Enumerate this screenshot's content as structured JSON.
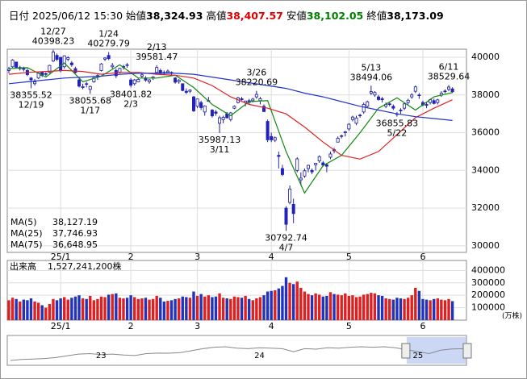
{
  "header": {
    "date_label": "日付",
    "datetime": "2025/06/12 15:30",
    "items": [
      {
        "label": "始値",
        "value": "38,324.93",
        "color": "#000000"
      },
      {
        "label": "高値",
        "value": "38,407.57",
        "color": "#e00000"
      },
      {
        "label": "安値",
        "value": "38,102.05",
        "color": "#008000"
      },
      {
        "label": "終値",
        "value": "38,173.09",
        "color": "#000000"
      }
    ]
  },
  "chart_data": {
    "type": "candlestick",
    "up_color": "#1a1aa0",
    "down_color": "#2222bb",
    "up_fill": "#ffffff",
    "ylim": [
      29650,
      40430
    ],
    "yticks": [
      30000,
      32000,
      34000,
      36000,
      38000,
      40000
    ],
    "grid": true,
    "xlabels": [
      {
        "index": 14,
        "label": "25/1"
      },
      {
        "index": 33,
        "label": "2"
      },
      {
        "index": 51,
        "label": "3"
      },
      {
        "index": 71,
        "label": "4"
      },
      {
        "index": 92,
        "label": "5"
      },
      {
        "index": 112,
        "label": "6"
      }
    ],
    "candles": [
      [
        39300,
        39500,
        39150,
        39370
      ],
      [
        39500,
        39900,
        39450,
        39850
      ],
      [
        39750,
        39750,
        39400,
        39470
      ],
      [
        39400,
        39550,
        39300,
        39460
      ],
      [
        39450,
        39500,
        39250,
        39360
      ],
      [
        39300,
        39400,
        39000,
        39080
      ],
      [
        38900,
        38950,
        38355.52,
        38810
      ],
      [
        38600,
        38850,
        38500,
        38700
      ],
      [
        38900,
        39200,
        38850,
        39160
      ],
      [
        39200,
        39250,
        38950,
        39040
      ],
      [
        39100,
        39200,
        39000,
        39130
      ],
      [
        39200,
        39600,
        39150,
        39570
      ],
      [
        39800,
        40398.23,
        39750,
        40280
      ],
      [
        40100,
        40200,
        39800,
        39890
      ],
      [
        40000,
        40000,
        39200,
        39310
      ],
      [
        39500,
        40100,
        39400,
        40080
      ],
      [
        39900,
        40050,
        39800,
        39980
      ],
      [
        39700,
        39800,
        39500,
        39600
      ],
      [
        39400,
        39500,
        39150,
        39190
      ],
      [
        38800,
        38950,
        38400,
        38470
      ],
      [
        38400,
        38600,
        38300,
        38440
      ],
      [
        38600,
        38700,
        38400,
        38570
      ],
      [
        38300,
        38500,
        38055.68,
        38450
      ],
      [
        38700,
        38950,
        38650,
        38900
      ],
      [
        39000,
        39100,
        38800,
        39030
      ],
      [
        39300,
        39700,
        39250,
        39650
      ],
      [
        39900,
        40000,
        39800,
        39960
      ],
      [
        40100,
        40279.79,
        39850,
        39930
      ],
      [
        39500,
        39700,
        39400,
        39570
      ],
      [
        39300,
        39400,
        38900,
        39020
      ],
      [
        39200,
        39450,
        39150,
        39410
      ],
      [
        39500,
        39600,
        39350,
        39510
      ],
      [
        39600,
        39700,
        39450,
        39570
      ],
      [
        38800,
        38900,
        38401.82,
        38520
      ],
      [
        38600,
        38850,
        38500,
        38800
      ],
      [
        38700,
        38900,
        38700,
        38830
      ],
      [
        39000,
        39200,
        38900,
        39070
      ],
      [
        38900,
        39000,
        38700,
        38790
      ],
      [
        38700,
        38850,
        38600,
        38800
      ],
      [
        38900,
        39000,
        38800,
        38960
      ],
      [
        39200,
        39581.47,
        39150,
        39460
      ],
      [
        39300,
        39400,
        39100,
        39150
      ],
      [
        39200,
        39300,
        39100,
        39170
      ],
      [
        39200,
        39350,
        39150,
        39270
      ],
      [
        39200,
        39250,
        39000,
        39160
      ],
      [
        38900,
        38950,
        38600,
        38680
      ],
      [
        38700,
        38850,
        38600,
        38780
      ],
      [
        38600,
        38600,
        38200,
        38240
      ],
      [
        38200,
        38350,
        38050,
        38140
      ],
      [
        38200,
        38300,
        38100,
        38260
      ],
      [
        37900,
        37950,
        37100,
        37160
      ],
      [
        37400,
        37800,
        37300,
        37790
      ],
      [
        37600,
        37700,
        37200,
        37330
      ],
      [
        37100,
        37450,
        36900,
        37420
      ],
      [
        37700,
        37900,
        37650,
        37700
      ],
      [
        37200,
        37250,
        36800,
        36890
      ],
      [
        37100,
        37200,
        36900,
        37030
      ],
      [
        36500,
        36900,
        35987.13,
        36790
      ],
      [
        36700,
        36900,
        36500,
        36820
      ],
      [
        37000,
        37100,
        36750,
        36790
      ],
      [
        36700,
        37100,
        36600,
        37050
      ],
      [
        37300,
        37450,
        37250,
        37400
      ],
      [
        37600,
        37900,
        37550,
        37850
      ],
      [
        37800,
        37900,
        37700,
        37750
      ],
      [
        37600,
        37700,
        37400,
        37680
      ],
      [
        37700,
        37800,
        37500,
        37610
      ],
      [
        37700,
        37850,
        37600,
        37780
      ],
      [
        37900,
        38220.69,
        37800,
        38030
      ],
      [
        37700,
        37900,
        37500,
        37800
      ],
      [
        37400,
        37500,
        37100,
        37120
      ],
      [
        36600,
        36700,
        35500,
        35620
      ],
      [
        35800,
        36000,
        35500,
        35620
      ],
      [
        35600,
        35800,
        35500,
        35730
      ],
      [
        34800,
        35000,
        34100,
        34740
      ],
      [
        34100,
        34300,
        33700,
        33780
      ],
      [
        32000,
        32100,
        30792.74,
        31140
      ],
      [
        32300,
        33200,
        32200,
        33010
      ],
      [
        32200,
        32500,
        31200,
        31710
      ],
      [
        34000,
        34700,
        33900,
        34610
      ],
      [
        33500,
        33900,
        33200,
        33590
      ],
      [
        33700,
        34100,
        33600,
        33980
      ],
      [
        34100,
        34300,
        33900,
        34270
      ],
      [
        34000,
        34100,
        33800,
        33920
      ],
      [
        34300,
        34400,
        34000,
        34380
      ],
      [
        34500,
        34800,
        34400,
        34730
      ],
      [
        34400,
        34500,
        34200,
        34280
      ],
      [
        34300,
        34400,
        33900,
        34220
      ],
      [
        34700,
        35000,
        34600,
        34870
      ],
      [
        35100,
        35200,
        34900,
        35040
      ],
      [
        35500,
        35800,
        35500,
        35710
      ],
      [
        35800,
        35900,
        35700,
        35840
      ],
      [
        36000,
        36100,
        35800,
        36050
      ],
      [
        36200,
        36500,
        36100,
        36450
      ],
      [
        36700,
        36900,
        36600,
        36830
      ],
      [
        36500,
        36900,
        36400,
        36780
      ],
      [
        36900,
        37000,
        36800,
        36930
      ],
      [
        37100,
        37600,
        37000,
        37500
      ],
      [
        37400,
        37700,
        37300,
        37640
      ],
      [
        38100,
        38494.06,
        38000,
        38180
      ],
      [
        38000,
        38200,
        37900,
        38130
      ],
      [
        37900,
        38000,
        37700,
        37760
      ],
      [
        37800,
        37900,
        37600,
        37750
      ],
      [
        37400,
        37600,
        37300,
        37500
      ],
      [
        37500,
        37600,
        37400,
        37530
      ],
      [
        37400,
        37500,
        37200,
        37300
      ],
      [
        37000,
        37100,
        36855.83,
        36990
      ],
      [
        37200,
        37300,
        37000,
        37160
      ],
      [
        37300,
        37600,
        37200,
        37530
      ],
      [
        37600,
        37800,
        37500,
        37720
      ],
      [
        37900,
        38100,
        37800,
        38000
      ],
      [
        38200,
        38500,
        38100,
        38430
      ],
      [
        38000,
        38100,
        37800,
        37970
      ],
      [
        37600,
        37700,
        37400,
        37470
      ],
      [
        37500,
        37600,
        37300,
        37450
      ],
      [
        37600,
        37800,
        37500,
        37750
      ],
      [
        37700,
        37800,
        37500,
        37550
      ],
      [
        37600,
        37800,
        37500,
        37740
      ],
      [
        38000,
        38200,
        37900,
        38090
      ],
      [
        38200,
        38300,
        38100,
        38210
      ],
      [
        38300,
        38529.64,
        38200,
        38420
      ],
      [
        38324.93,
        38407.57,
        38102.05,
        38173.09
      ]
    ],
    "annotations": [
      {
        "date": "12/19",
        "price": 38355.52,
        "index": 6,
        "side": "low"
      },
      {
        "date": "12/27",
        "price": 40398.23,
        "index": 12,
        "side": "high"
      },
      {
        "date": "1/17",
        "price": 38055.68,
        "index": 22,
        "side": "low"
      },
      {
        "date": "1/24",
        "price": 40279.79,
        "index": 27,
        "side": "high"
      },
      {
        "date": "2/3",
        "price": 38401.82,
        "index": 33,
        "side": "low"
      },
      {
        "date": "2/13",
        "price": 39581.47,
        "index": 40,
        "side": "high"
      },
      {
        "date": "3/11",
        "price": 35987.13,
        "index": 57,
        "side": "low"
      },
      {
        "date": "3/26",
        "price": 38220.69,
        "index": 67,
        "side": "high"
      },
      {
        "date": "4/7",
        "price": 30792.74,
        "index": 75,
        "side": "low"
      },
      {
        "date": "5/13",
        "price": 38494.06,
        "index": 98,
        "side": "high"
      },
      {
        "date": "5/22",
        "price": 36855.83,
        "index": 105,
        "side": "low"
      },
      {
        "date": "6/11",
        "price": 38529.64,
        "index": 119,
        "side": "high"
      }
    ],
    "ma_index": [
      0,
      5,
      10,
      15,
      20,
      25,
      30,
      35,
      40,
      45,
      50,
      55,
      60,
      65,
      70,
      75,
      80,
      85,
      90,
      95,
      100,
      105,
      110,
      115,
      120
    ],
    "series": [
      {
        "name": "MA(5)",
        "color": "#118811",
        "last_label": "38,127.19",
        "values": [
          39400,
          39450,
          38950,
          39700,
          38700,
          39000,
          39600,
          38900,
          38900,
          39050,
          38400,
          37500,
          36900,
          37650,
          37700,
          35000,
          32800,
          34250,
          34800,
          36000,
          37300,
          37850,
          37200,
          37900,
          38127.19
        ]
      },
      {
        "name": "MA(25)",
        "color": "#e02020",
        "last_label": "37,746.93",
        "values": [
          39100,
          39200,
          39250,
          39300,
          39250,
          39100,
          39200,
          39200,
          39100,
          39050,
          38900,
          38500,
          37900,
          37500,
          37300,
          37000,
          36300,
          35500,
          34800,
          34600,
          35000,
          35900,
          36800,
          37300,
          37746.93
        ]
      },
      {
        "name": "MA(75)",
        "color": "#2233cc",
        "last_label": "36,648.95",
        "values": [
          38600,
          38700,
          38800,
          38900,
          38950,
          39000,
          39100,
          39150,
          39150,
          39150,
          39100,
          38950,
          38800,
          38650,
          38500,
          38350,
          38100,
          37900,
          37650,
          37400,
          37200,
          37000,
          36850,
          36750,
          36648.95
        ]
      }
    ],
    "volume": {
      "label": "出来高",
      "total": "1,527,241,200株",
      "unit": "(万株)",
      "up_color": "#e02020",
      "down_color": "#2233bb",
      "ylim": [
        0,
        480000
      ],
      "yticks": [
        100000,
        200000,
        300000,
        400000
      ],
      "values": [
        160000,
        180000,
        170000,
        150000,
        165000,
        160000,
        175000,
        150000,
        140000,
        120000,
        100000,
        130000,
        170000,
        160000,
        175000,
        185000,
        165000,
        180000,
        190000,
        200000,
        175000,
        170000,
        195000,
        160000,
        170000,
        190000,
        185000,
        205000,
        210000,
        215000,
        180000,
        175000,
        180000,
        200000,
        185000,
        170000,
        175000,
        180000,
        165000,
        170000,
        195000,
        180000,
        150000,
        155000,
        160000,
        170000,
        175000,
        190000,
        185000,
        180000,
        230000,
        195000,
        210000,
        190000,
        200000,
        185000,
        190000,
        215000,
        180000,
        175000,
        170000,
        190000,
        185000,
        180000,
        195000,
        170000,
        160000,
        175000,
        185000,
        200000,
        230000,
        235000,
        240000,
        255000,
        275000,
        345000,
        300000,
        290000,
        310000,
        260000,
        230000,
        210000,
        200000,
        215000,
        205000,
        190000,
        195000,
        225000,
        210000,
        205000,
        200000,
        215000,
        195000,
        200000,
        185000,
        190000,
        205000,
        210000,
        220000,
        215000,
        200000,
        195000,
        175000,
        170000,
        165000,
        180000,
        175000,
        170000,
        180000,
        200000,
        260000,
        235000,
        170000,
        165000,
        160000,
        170000,
        175000,
        165000,
        160000,
        170000,
        152724.12
      ]
    },
    "navigator": {
      "color": "#888888",
      "window_color": "#aabbee",
      "labels": [
        {
          "index": 8,
          "label": "23"
        },
        {
          "index": 22,
          "label": "24"
        },
        {
          "index": 36,
          "label": "25"
        }
      ],
      "values": [
        26000,
        27000,
        27500,
        28000,
        29000,
        30800,
        32500,
        33000,
        32000,
        32500,
        31500,
        31000,
        33000,
        33500,
        33400,
        34000,
        36000,
        38000,
        39500,
        40000,
        38500,
        38000,
        39000,
        38600,
        38000,
        35000,
        38000,
        37500,
        39000,
        38500,
        39500,
        40000,
        39500,
        40000,
        39000,
        37000,
        35000,
        33000,
        36500,
        37800,
        38000
      ]
    }
  }
}
